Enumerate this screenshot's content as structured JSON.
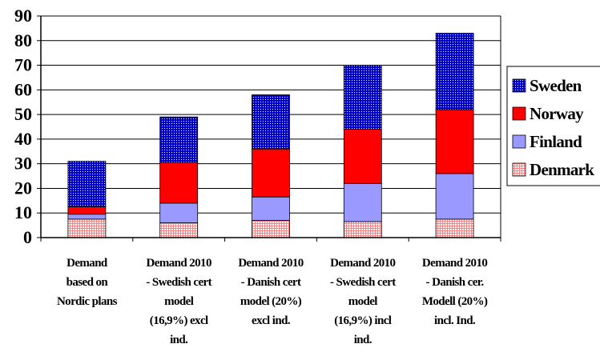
{
  "chart_data": {
    "type": "bar",
    "stacked": true,
    "title": "",
    "xlabel": "",
    "ylabel": "",
    "ylim": [
      0,
      90
    ],
    "yticks": [
      0,
      10,
      20,
      30,
      40,
      50,
      60,
      70,
      80,
      90
    ],
    "grid": true,
    "legend_position": "right",
    "categories": [
      [
        "Demand",
        "based on",
        "Nordic plans"
      ],
      [
        "Demand 2010",
        "- Swedish cert",
        "model",
        "(16,9%) excl",
        "ind."
      ],
      [
        "Demand 2010",
        "- Danish cert",
        "model (20%)",
        "excl ind."
      ],
      [
        "Demand 2010",
        "- Swedish cert",
        "model",
        "(16,9%) incl",
        "ind."
      ],
      [
        "Demand 2010",
        "- Danish cer.",
        "Modell (20%)",
        "incl. Ind."
      ]
    ],
    "series": [
      {
        "name": "Denmark",
        "color": "#ff8080",
        "pattern": "red-grid",
        "values": [
          7.5,
          6,
          7,
          6.5,
          7.5
        ]
      },
      {
        "name": "Finland",
        "color": "#9999ff",
        "pattern": "solid",
        "values": [
          2,
          8,
          9.5,
          15.5,
          18.5
        ]
      },
      {
        "name": "Norway",
        "color": "#ff0000",
        "pattern": "solid",
        "values": [
          3,
          16.5,
          19.5,
          22,
          26
        ]
      },
      {
        "name": "Sweden",
        "color": "#0000cc",
        "pattern": "blue-dots",
        "values": [
          18.5,
          18.5,
          22,
          26,
          31
        ]
      }
    ],
    "legend_order": [
      "Sweden",
      "Norway",
      "Finland",
      "Denmark"
    ]
  }
}
